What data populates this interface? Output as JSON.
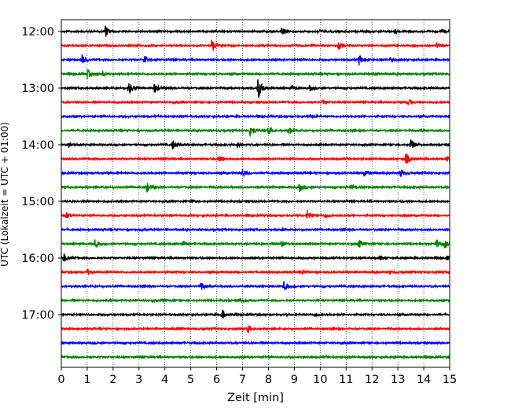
{
  "chart_data": {
    "type": "line",
    "title": "",
    "xlabel": "Zeit  [min]",
    "ylabel": "UTC (Lokalzeit = UTC + 01:00)",
    "xlim": [
      0,
      15
    ],
    "x_ticks": [
      "0",
      "1",
      "2",
      "3",
      "4",
      "5",
      "6",
      "7",
      "8",
      "9",
      "10",
      "11",
      "12",
      "13",
      "14",
      "15"
    ],
    "y_ticks": [
      "12:00",
      "13:00",
      "14:00",
      "15:00",
      "16:00",
      "17:00"
    ],
    "trace_interval_min": 15,
    "trace_start": "12:00",
    "trace_colors": [
      "#000000",
      "#ff0000",
      "#0000ff",
      "#008000"
    ],
    "grid": "vertical dotted at each minute",
    "traces": [
      {
        "start": "12:00",
        "color": "#000000",
        "events": [
          [
            1.7,
            0.8
          ],
          [
            8.5,
            0.6
          ],
          [
            9.9,
            0.3
          ],
          [
            12.9,
            0.25
          ],
          [
            14.7,
            0.25
          ]
        ]
      },
      {
        "start": "12:15",
        "color": "#ff0000",
        "events": [
          [
            5.8,
            1.0
          ],
          [
            10.7,
            0.6
          ],
          [
            14.5,
            0.45
          ]
        ]
      },
      {
        "start": "12:30",
        "color": "#0000ff",
        "events": [
          [
            0.8,
            0.6
          ],
          [
            3.2,
            0.7
          ],
          [
            11.5,
            0.8
          ],
          [
            12.7,
            0.25
          ]
        ]
      },
      {
        "start": "12:45",
        "color": "#008000",
        "events": [
          [
            1.0,
            0.7
          ],
          [
            1.6,
            0.3
          ],
          [
            12.0,
            0.25
          ]
        ]
      },
      {
        "start": "13:00",
        "color": "#000000",
        "events": [
          [
            2.6,
            0.9
          ],
          [
            3.6,
            0.7
          ],
          [
            7.6,
            1.6
          ],
          [
            8.9,
            0.35
          ],
          [
            9.6,
            0.4
          ]
        ]
      },
      {
        "start": "13:15",
        "color": "#ff0000",
        "events": [
          [
            13.4,
            0.5
          ],
          [
            10.1,
            0.2
          ]
        ]
      },
      {
        "start": "13:30",
        "color": "#0000ff",
        "events": [
          [
            9.6,
            0.2
          ]
        ]
      },
      {
        "start": "13:45",
        "color": "#008000",
        "events": [
          [
            7.3,
            1.0
          ],
          [
            8.0,
            0.6
          ],
          [
            8.8,
            0.5
          ],
          [
            13.9,
            0.2
          ]
        ]
      },
      {
        "start": "14:00",
        "color": "#000000",
        "events": [
          [
            0.3,
            0.3
          ],
          [
            4.3,
            0.6
          ],
          [
            6.8,
            0.35
          ],
          [
            13.5,
            0.9
          ]
        ]
      },
      {
        "start": "14:15",
        "color": "#ff0000",
        "events": [
          [
            6.1,
            0.4
          ],
          [
            13.3,
            0.9
          ],
          [
            14.9,
            0.4
          ]
        ]
      },
      {
        "start": "14:30",
        "color": "#0000ff",
        "events": [
          [
            7.0,
            0.6
          ],
          [
            11.7,
            0.5
          ],
          [
            13.1,
            0.6
          ]
        ]
      },
      {
        "start": "14:45",
        "color": "#008000",
        "events": [
          [
            3.3,
            0.7
          ],
          [
            9.2,
            0.6
          ],
          [
            11.2,
            0.3
          ]
        ]
      },
      {
        "start": "15:00",
        "color": "#000000",
        "events": [
          [
            5.0,
            0.2
          ]
        ]
      },
      {
        "start": "15:15",
        "color": "#ff0000",
        "events": [
          [
            0.2,
            0.4
          ],
          [
            9.5,
            0.8
          ],
          [
            10.2,
            0.3
          ],
          [
            13.2,
            0.3
          ]
        ]
      },
      {
        "start": "15:30",
        "color": "#0000ff",
        "events": [
          [
            3.1,
            0.2
          ],
          [
            8.5,
            0.2
          ]
        ]
      },
      {
        "start": "15:45",
        "color": "#008000",
        "events": [
          [
            1.3,
            0.5
          ],
          [
            4.7,
            0.3
          ],
          [
            8.5,
            0.5
          ],
          [
            11.5,
            0.6
          ],
          [
            14.5,
            0.6
          ],
          [
            14.8,
            0.5
          ]
        ]
      },
      {
        "start": "16:00",
        "color": "#000000",
        "events": [
          [
            0.1,
            0.6
          ],
          [
            12.3,
            0.3
          ],
          [
            14.9,
            0.3
          ]
        ]
      },
      {
        "start": "16:15",
        "color": "#ff0000",
        "events": [
          [
            1.0,
            0.5
          ],
          [
            9.3,
            0.3
          ],
          [
            12.7,
            0.2
          ]
        ]
      },
      {
        "start": "16:30",
        "color": "#0000ff",
        "events": [
          [
            5.4,
            0.6
          ],
          [
            8.6,
            0.6
          ]
        ]
      },
      {
        "start": "16:45",
        "color": "#008000",
        "events": [
          [
            3.9,
            0.25
          ],
          [
            6.9,
            0.25
          ]
        ]
      },
      {
        "start": "17:00",
        "color": "#000000",
        "events": [
          [
            6.2,
            0.7
          ],
          [
            9.8,
            0.25
          ]
        ]
      },
      {
        "start": "17:15",
        "color": "#ff0000",
        "events": [
          [
            7.2,
            0.6
          ],
          [
            4.5,
            0.2
          ]
        ]
      },
      {
        "start": "17:30",
        "color": "#0000ff",
        "events": []
      },
      {
        "start": "17:45",
        "color": "#008000",
        "events": []
      }
    ]
  }
}
